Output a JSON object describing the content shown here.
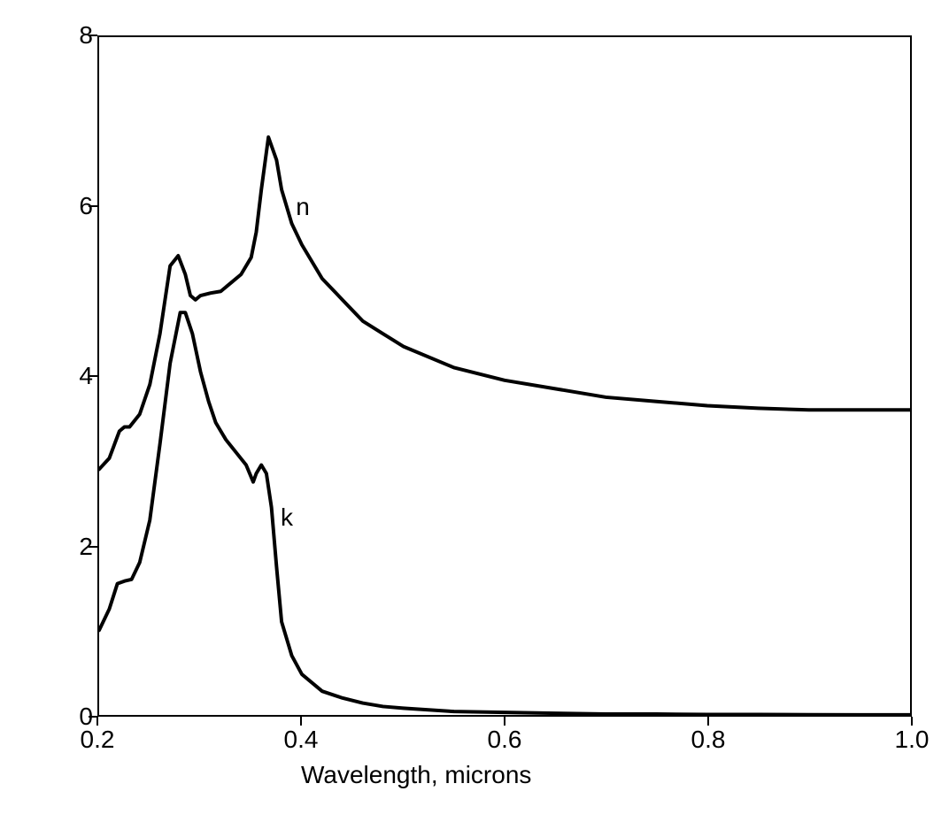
{
  "chart": {
    "type": "line",
    "xlabel": "Wavelength, microns",
    "xlabel_fontsize": 28,
    "ylabel": "",
    "xlim": [
      0.2,
      1.0
    ],
    "ylim": [
      0,
      8
    ],
    "xtick_values": [
      0.2,
      0.4,
      0.6,
      0.8,
      1.0
    ],
    "xtick_labels": [
      "0.2",
      "0.4",
      "0.6",
      "0.8",
      "1.0"
    ],
    "ytick_values": [
      0,
      2,
      4,
      6,
      8
    ],
    "ytick_labels": [
      "0",
      "2",
      "4",
      "6",
      "8"
    ],
    "tick_fontsize": 28,
    "background_color": "#ffffff",
    "border_color": "#000000",
    "border_width": 2,
    "line_color": "#000000",
    "line_width": 4,
    "series": {
      "n": {
        "label": "n",
        "label_x": 0.395,
        "label_y": 6.15,
        "data": [
          [
            0.2,
            2.9
          ],
          [
            0.21,
            3.03
          ],
          [
            0.22,
            3.35
          ],
          [
            0.225,
            3.4
          ],
          [
            0.23,
            3.4
          ],
          [
            0.24,
            3.55
          ],
          [
            0.25,
            3.9
          ],
          [
            0.26,
            4.5
          ],
          [
            0.27,
            5.3
          ],
          [
            0.278,
            5.42
          ],
          [
            0.285,
            5.2
          ],
          [
            0.29,
            4.95
          ],
          [
            0.295,
            4.9
          ],
          [
            0.3,
            4.95
          ],
          [
            0.31,
            4.98
          ],
          [
            0.32,
            5.0
          ],
          [
            0.33,
            5.1
          ],
          [
            0.34,
            5.2
          ],
          [
            0.35,
            5.4
          ],
          [
            0.355,
            5.7
          ],
          [
            0.36,
            6.2
          ],
          [
            0.367,
            6.82
          ],
          [
            0.375,
            6.55
          ],
          [
            0.38,
            6.2
          ],
          [
            0.39,
            5.8
          ],
          [
            0.4,
            5.55
          ],
          [
            0.42,
            5.15
          ],
          [
            0.44,
            4.9
          ],
          [
            0.46,
            4.65
          ],
          [
            0.48,
            4.5
          ],
          [
            0.5,
            4.35
          ],
          [
            0.55,
            4.1
          ],
          [
            0.6,
            3.95
          ],
          [
            0.65,
            3.85
          ],
          [
            0.7,
            3.75
          ],
          [
            0.75,
            3.7
          ],
          [
            0.8,
            3.65
          ],
          [
            0.85,
            3.62
          ],
          [
            0.9,
            3.6
          ],
          [
            0.95,
            3.6
          ],
          [
            1.0,
            3.6
          ]
        ]
      },
      "k": {
        "label": "k",
        "label_x": 0.38,
        "label_y": 2.5,
        "data": [
          [
            0.2,
            1.0
          ],
          [
            0.21,
            1.25
          ],
          [
            0.218,
            1.55
          ],
          [
            0.225,
            1.58
          ],
          [
            0.232,
            1.6
          ],
          [
            0.24,
            1.8
          ],
          [
            0.25,
            2.3
          ],
          [
            0.26,
            3.2
          ],
          [
            0.27,
            4.15
          ],
          [
            0.28,
            4.75
          ],
          [
            0.285,
            4.75
          ],
          [
            0.292,
            4.5
          ],
          [
            0.3,
            4.05
          ],
          [
            0.308,
            3.7
          ],
          [
            0.315,
            3.45
          ],
          [
            0.325,
            3.25
          ],
          [
            0.335,
            3.1
          ],
          [
            0.345,
            2.95
          ],
          [
            0.352,
            2.75
          ],
          [
            0.355,
            2.85
          ],
          [
            0.36,
            2.95
          ],
          [
            0.365,
            2.85
          ],
          [
            0.37,
            2.45
          ],
          [
            0.375,
            1.75
          ],
          [
            0.38,
            1.1
          ],
          [
            0.39,
            0.7
          ],
          [
            0.4,
            0.48
          ],
          [
            0.42,
            0.28
          ],
          [
            0.44,
            0.2
          ],
          [
            0.46,
            0.14
          ],
          [
            0.48,
            0.1
          ],
          [
            0.5,
            0.08
          ],
          [
            0.55,
            0.04
          ],
          [
            0.6,
            0.03
          ],
          [
            0.65,
            0.02
          ],
          [
            0.7,
            0.01
          ],
          [
            0.75,
            0.01
          ],
          [
            0.8,
            0.005
          ],
          [
            0.85,
            0.005
          ],
          [
            0.9,
            0.003
          ],
          [
            0.95,
            0.002
          ],
          [
            1.0,
            0.002
          ]
        ]
      }
    }
  }
}
